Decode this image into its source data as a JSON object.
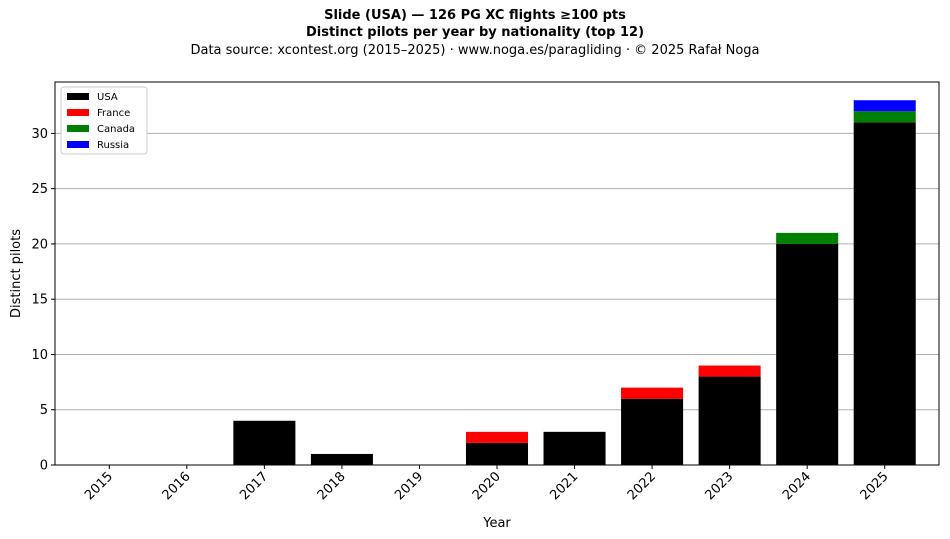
{
  "header": {
    "title": "Slide (USA)  —  126 PG XC flights ≥100 pts",
    "subtitle": "Distinct pilots per year by nationality (top 12)",
    "source": "Data source: xcontest.org (2015–2025)  ·  www.noga.es/paragliding  ·  © 2025 Rafał Noga"
  },
  "chart_data": {
    "type": "bar",
    "stacked": true,
    "title": "Slide (USA)  —  126 PG XC flights ≥100 pts",
    "subtitle": "Distinct pilots per year by nationality (top 12)",
    "xlabel": "Year",
    "ylabel": "Distinct pilots",
    "categories": [
      "2015",
      "2016",
      "2017",
      "2018",
      "2019",
      "2020",
      "2021",
      "2022",
      "2023",
      "2024",
      "2025"
    ],
    "series": [
      {
        "name": "USA",
        "color": "#000000",
        "values": [
          0,
          0,
          4,
          1,
          0,
          2,
          3,
          6,
          8,
          20,
          31
        ]
      },
      {
        "name": "France",
        "color": "#ff0000",
        "values": [
          0,
          0,
          0,
          0,
          0,
          1,
          0,
          1,
          1,
          0,
          0
        ]
      },
      {
        "name": "Canada",
        "color": "#008000",
        "values": [
          0,
          0,
          0,
          0,
          0,
          0,
          0,
          0,
          0,
          1,
          1
        ]
      },
      {
        "name": "Russia",
        "color": "#0000ff",
        "values": [
          0,
          0,
          0,
          0,
          0,
          0,
          0,
          0,
          0,
          0,
          1
        ]
      }
    ],
    "ylim": [
      0,
      34.65
    ],
    "yticks": [
      0,
      5,
      10,
      15,
      20,
      25,
      30
    ],
    "grid": "y",
    "legend": "top-left"
  }
}
